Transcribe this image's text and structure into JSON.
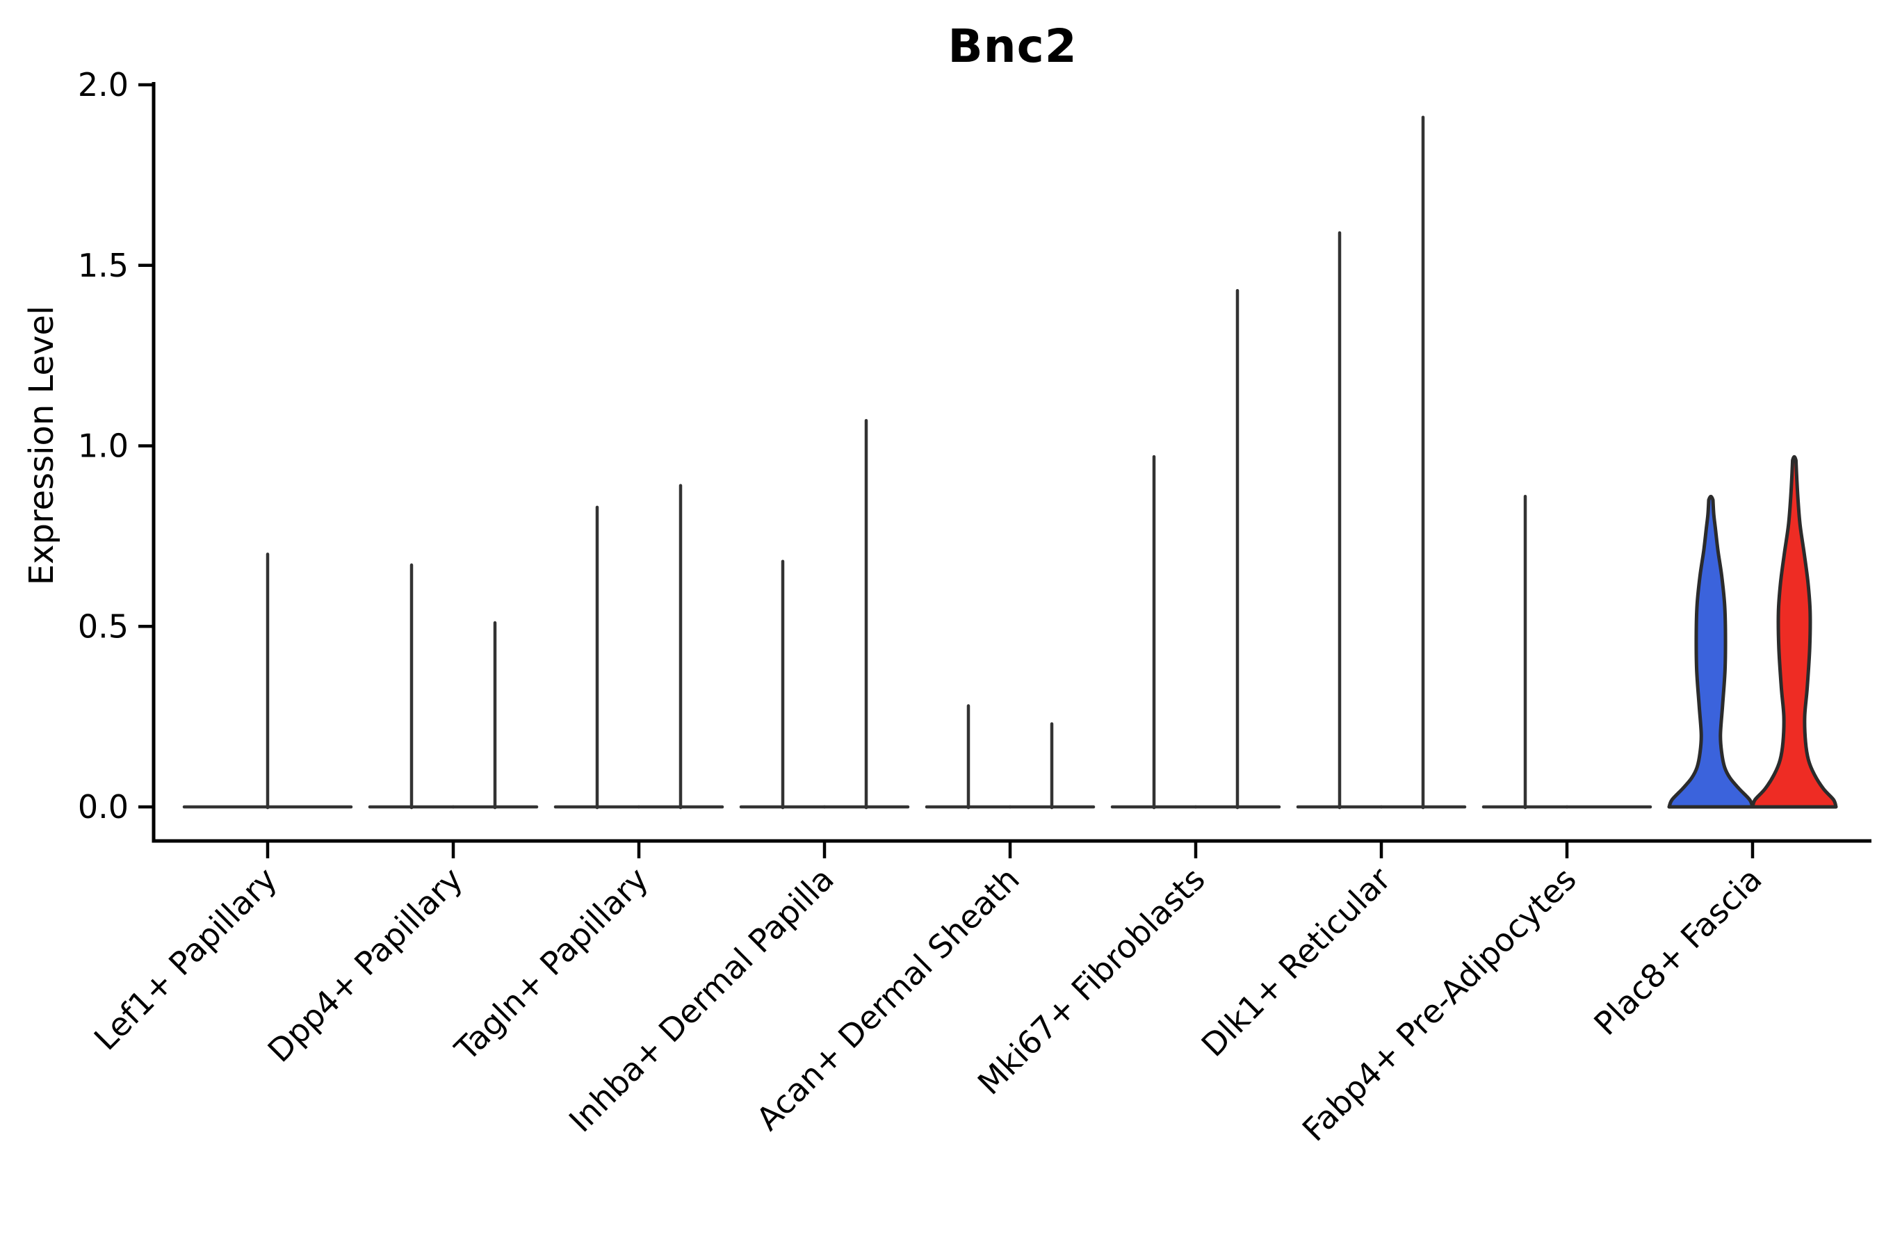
{
  "chart_data": {
    "type": "violin",
    "title": "Bnc2",
    "ylabel": "Expression Level",
    "xlabel": "",
    "ylim": [
      -0.09,
      2.0
    ],
    "yticks": [
      0.0,
      0.5,
      1.0,
      1.5,
      2.0
    ],
    "ytick_labels": [
      "0.0",
      "0.5",
      "1.0",
      "1.5",
      "2.0"
    ],
    "grid": false,
    "legend": "none",
    "split_groups": 2,
    "categories": [
      "Lef1+ Papillary",
      "Dpp4+ Papillary",
      "Tagln+ Papillary",
      "Inhba+ Dermal Papilla",
      "Acan+ Dermal Sheath",
      "Mki67+ Fibroblasts",
      "Dlk1+ Reticular",
      "Fabp4+ Pre-Adipocytes",
      "Plac8+ Fascia"
    ],
    "violins": [
      {
        "category": "Lef1+ Papillary",
        "violins": [
          {
            "pos": "center",
            "max": 0.7,
            "style": "spike"
          }
        ]
      },
      {
        "category": "Dpp4+ Papillary",
        "violins": [
          {
            "pos": "left",
            "max": 0.67,
            "style": "spike"
          },
          {
            "pos": "right",
            "max": 0.51,
            "style": "spike"
          }
        ]
      },
      {
        "category": "Tagln+ Papillary",
        "violins": [
          {
            "pos": "left",
            "max": 0.83,
            "style": "spike"
          },
          {
            "pos": "right",
            "max": 0.89,
            "style": "spike"
          }
        ]
      },
      {
        "category": "Inhba+ Dermal Papilla",
        "violins": [
          {
            "pos": "left",
            "max": 0.68,
            "style": "spike"
          },
          {
            "pos": "right",
            "max": 1.07,
            "style": "spike"
          }
        ]
      },
      {
        "category": "Acan+ Dermal Sheath",
        "violins": [
          {
            "pos": "left",
            "max": 0.28,
            "style": "spike"
          },
          {
            "pos": "right",
            "max": 0.23,
            "style": "spike"
          }
        ]
      },
      {
        "category": "Mki67+ Fibroblasts",
        "violins": [
          {
            "pos": "left",
            "max": 0.97,
            "style": "spike"
          },
          {
            "pos": "right",
            "max": 1.43,
            "style": "spike"
          }
        ]
      },
      {
        "category": "Dlk1+ Reticular",
        "violins": [
          {
            "pos": "left",
            "max": 1.59,
            "style": "spike"
          },
          {
            "pos": "right",
            "max": 1.91,
            "style": "spike"
          }
        ]
      },
      {
        "category": "Fabp4+ Pre-Adipocytes",
        "violins": [
          {
            "pos": "left",
            "max": 0.86,
            "style": "spike"
          },
          {
            "pos": "right",
            "max": 0.0,
            "style": "flat"
          }
        ]
      },
      {
        "category": "Plac8+ Fascia",
        "violins": [
          {
            "pos": "left",
            "max": 0.85,
            "style": "violin",
            "fill": "#3B63DC",
            "profile": [
              [
                0,
                1.0
              ],
              [
                0.02,
                0.93
              ],
              [
                0.05,
                0.68
              ],
              [
                0.08,
                0.46
              ],
              [
                0.11,
                0.33
              ],
              [
                0.15,
                0.26
              ],
              [
                0.2,
                0.23
              ],
              [
                0.28,
                0.28
              ],
              [
                0.38,
                0.34
              ],
              [
                0.48,
                0.35
              ],
              [
                0.56,
                0.33
              ],
              [
                0.64,
                0.26
              ],
              [
                0.71,
                0.17
              ],
              [
                0.77,
                0.11
              ],
              [
                0.81,
                0.07
              ],
              [
                0.85,
                0.05
              ]
            ]
          },
          {
            "pos": "right",
            "max": 0.96,
            "style": "violin",
            "fill": "#EE2C24",
            "profile": [
              [
                0,
                1.0
              ],
              [
                0.02,
                0.94
              ],
              [
                0.05,
                0.7
              ],
              [
                0.09,
                0.48
              ],
              [
                0.13,
                0.34
              ],
              [
                0.18,
                0.27
              ],
              [
                0.25,
                0.25
              ],
              [
                0.33,
                0.31
              ],
              [
                0.44,
                0.37
              ],
              [
                0.54,
                0.38
              ],
              [
                0.62,
                0.33
              ],
              [
                0.7,
                0.24
              ],
              [
                0.78,
                0.14
              ],
              [
                0.85,
                0.09
              ],
              [
                0.91,
                0.06
              ],
              [
                0.96,
                0.04
              ]
            ]
          }
        ]
      }
    ],
    "colors": {
      "blue_violin": "#3B63DC",
      "red_violin": "#EE2C24",
      "violin_outline": "#2B2B2B",
      "spike_line": "#333333",
      "axis": "#000000"
    }
  }
}
